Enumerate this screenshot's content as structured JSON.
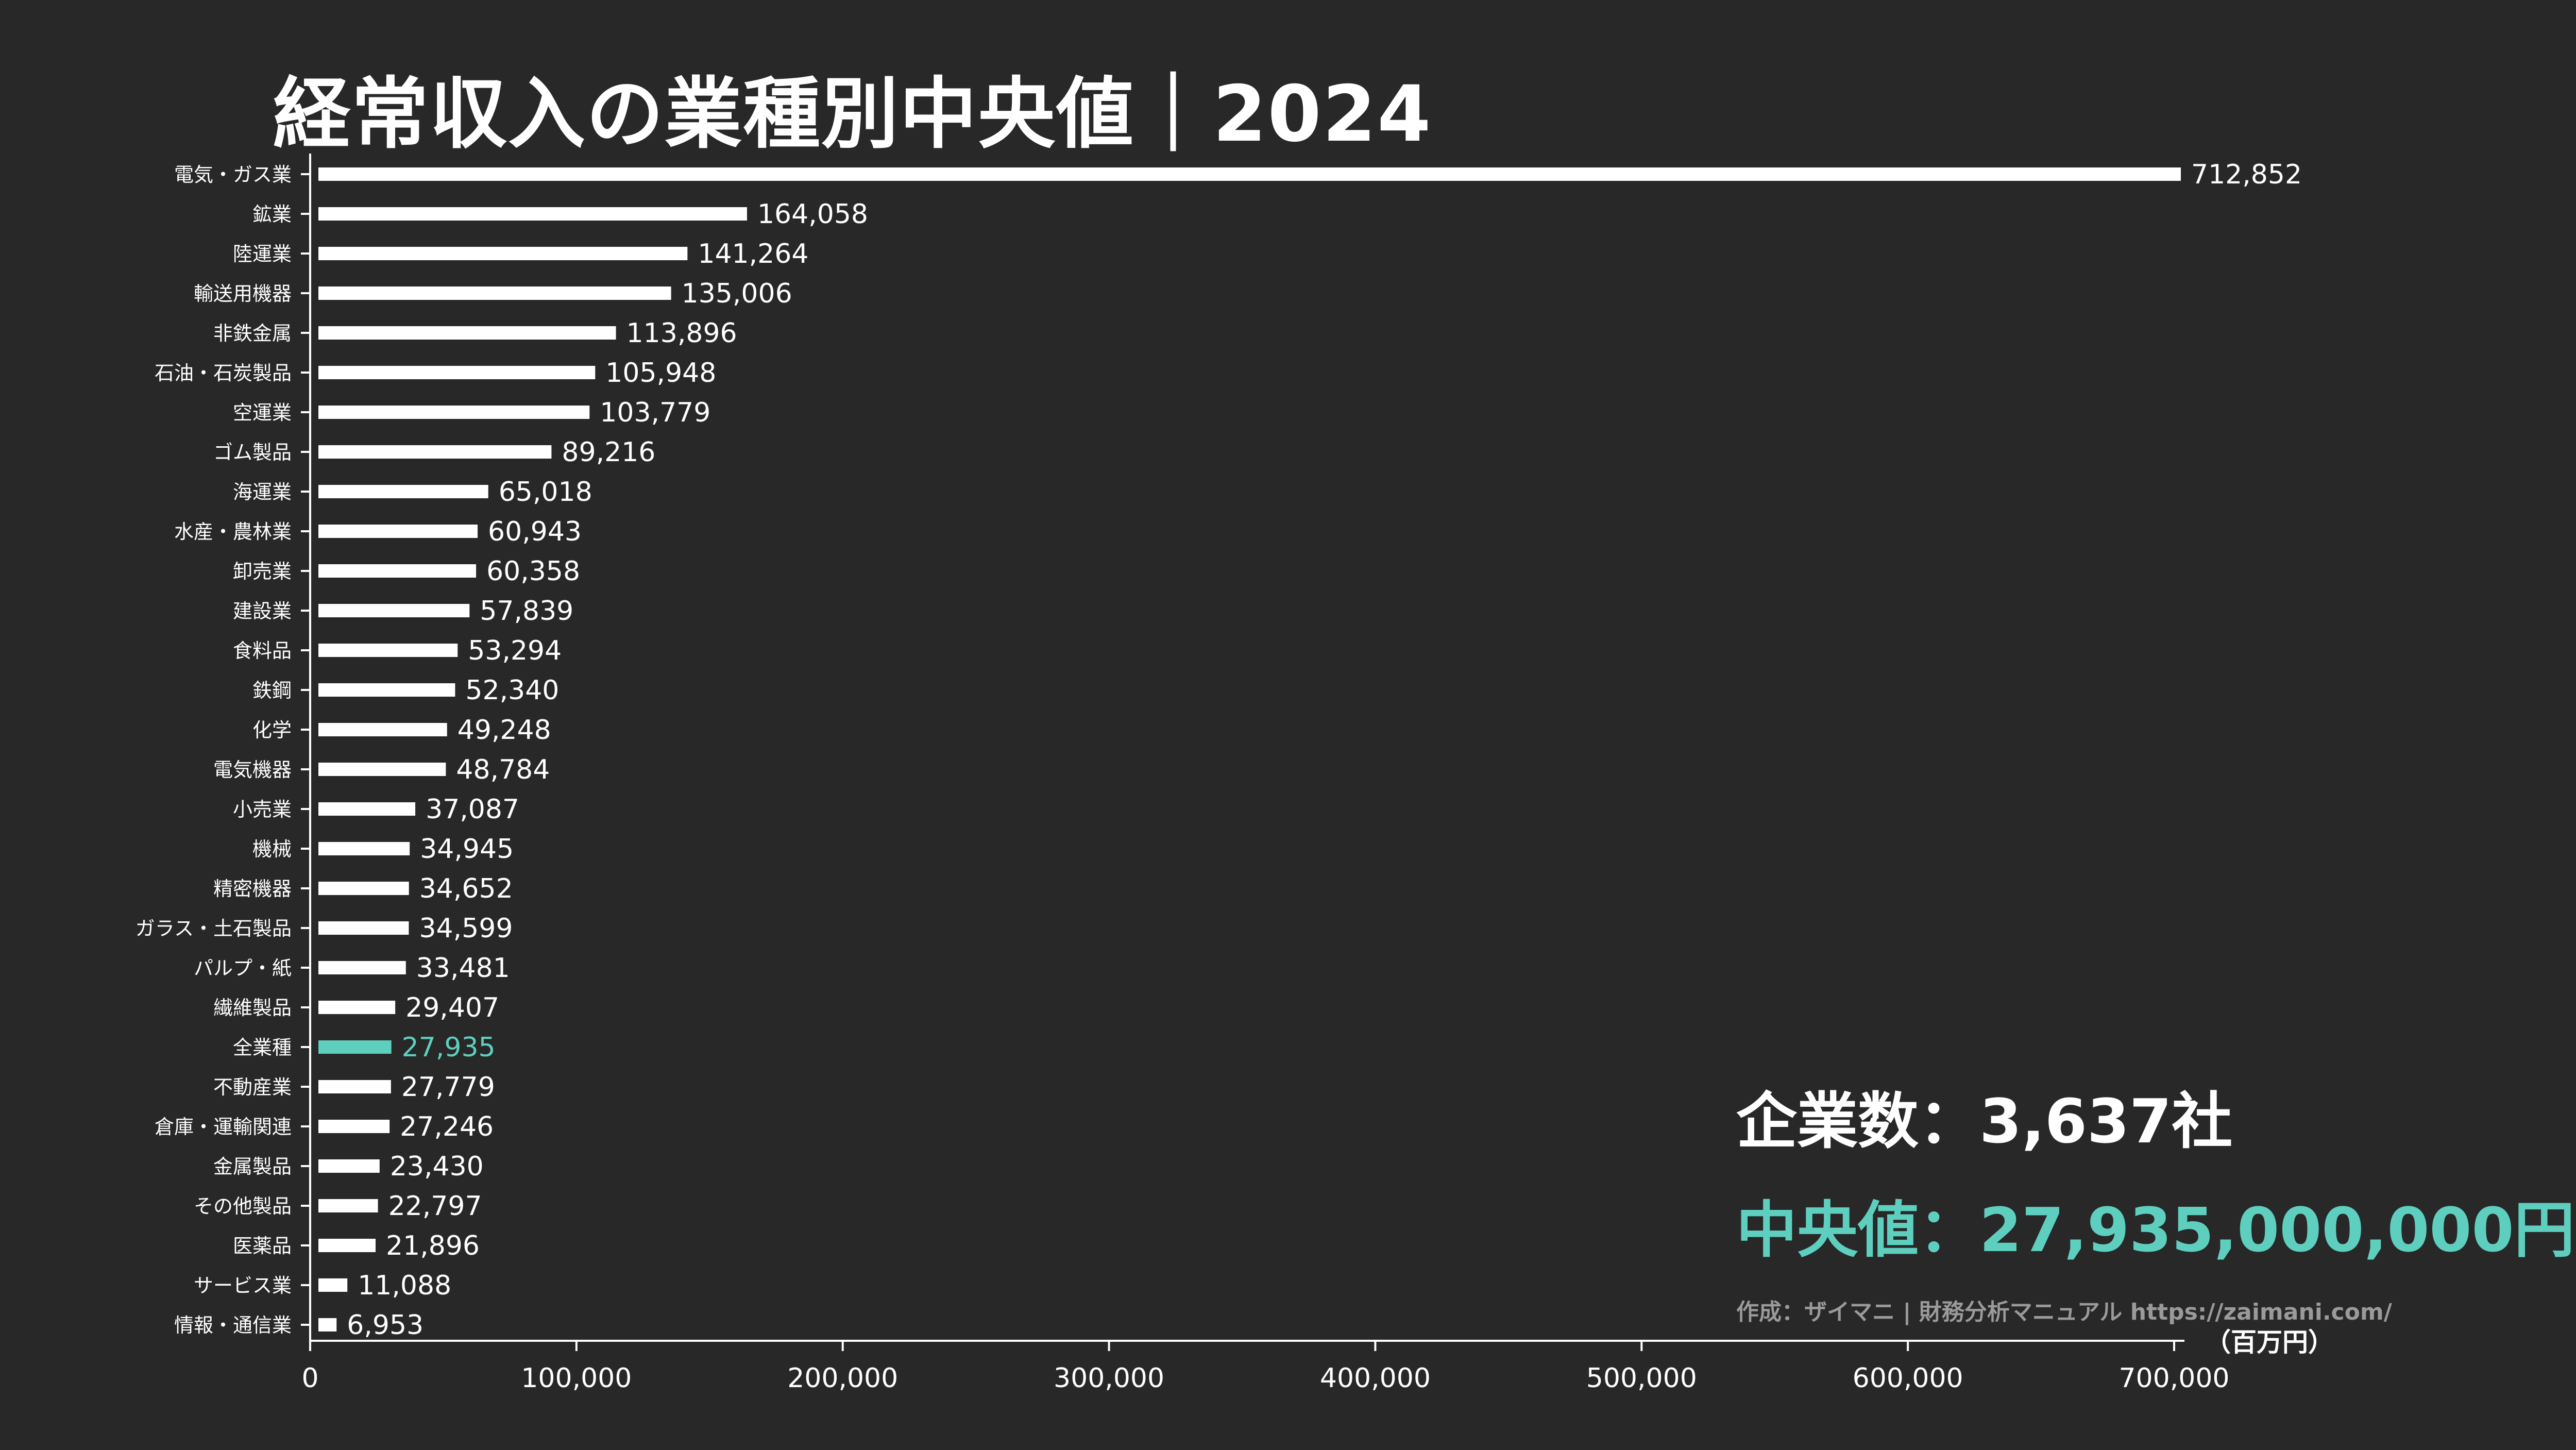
{
  "title": "経常収入の業種別中央値｜2024",
  "summary": {
    "company_count": "企業数：3,637社",
    "median": "中央値：27,935,000,000円",
    "credit": "作成：ザイマニ | 財務分析マニュアル https://zaimani.com/"
  },
  "colors": {
    "background": "#282828",
    "bar": "#ffffff",
    "highlight": "#5ecfbf",
    "text": "#ffffff",
    "credit": "#9a9a9a"
  },
  "chart_data": {
    "type": "bar",
    "orientation": "horizontal",
    "title": "経常収入の業種別中央値｜2024",
    "unit_label": "（百万円）",
    "xlim": [
      0,
      712852
    ],
    "x_ticks": [
      0,
      100000,
      200000,
      300000,
      400000,
      500000,
      600000,
      700000
    ],
    "x_tick_labels": [
      "0",
      "100,000",
      "200,000",
      "300,000",
      "400,000",
      "500,000",
      "600,000",
      "700,000"
    ],
    "highlight_category": "全業種",
    "categories": [
      "電気・ガス業",
      "鉱業",
      "陸運業",
      "輸送用機器",
      "非鉄金属",
      "石油・石炭製品",
      "空運業",
      "ゴム製品",
      "海運業",
      "水産・農林業",
      "卸売業",
      "建設業",
      "食料品",
      "鉄鋼",
      "化学",
      "電気機器",
      "小売業",
      "機械",
      "精密機器",
      "ガラス・土石製品",
      "パルプ・紙",
      "繊維製品",
      "全業種",
      "不動産業",
      "倉庫・運輸関連",
      "金属製品",
      "その他製品",
      "医薬品",
      "サービス業",
      "情報・通信業"
    ],
    "values": [
      712852,
      164058,
      141264,
      135006,
      113896,
      105948,
      103779,
      89216,
      65018,
      60943,
      60358,
      57839,
      53294,
      52340,
      49248,
      48784,
      37087,
      34945,
      34652,
      34599,
      33481,
      29407,
      27935,
      27779,
      27246,
      23430,
      22797,
      21896,
      11088,
      6953
    ],
    "value_labels": [
      "712,852",
      "164,058",
      "141,264",
      "135,006",
      "113,896",
      "105,948",
      "103,779",
      "89,216",
      "65,018",
      "60,943",
      "60,358",
      "57,839",
      "53,294",
      "52,340",
      "49,248",
      "48,784",
      "37,087",
      "34,945",
      "34,652",
      "34,599",
      "33,481",
      "29,407",
      "27,935",
      "27,779",
      "27,246",
      "23,430",
      "22,797",
      "21,896",
      "11,088",
      "6,953"
    ]
  }
}
